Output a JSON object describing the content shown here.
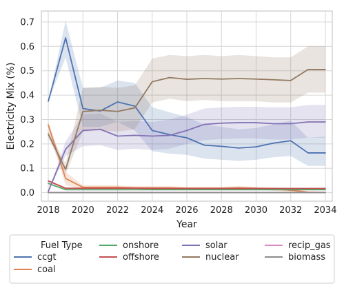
{
  "chart_data": {
    "type": "line",
    "title": "",
    "xlabel": "Year",
    "ylabel": "Electricity Mix (%)",
    "xlim": [
      2017.6,
      2034.4
    ],
    "ylim": [
      -0.035,
      0.745
    ],
    "x_ticks": [
      2018,
      2020,
      2022,
      2024,
      2026,
      2028,
      2030,
      2032,
      2034
    ],
    "y_ticks": [
      0.0,
      0.1,
      0.2,
      0.3,
      0.4,
      0.5,
      0.6,
      0.7
    ],
    "y_tick_labels": [
      "0.0",
      "0.1",
      "0.2",
      "0.3",
      "0.4",
      "0.5",
      "0.6",
      "0.7"
    ],
    "grid": true,
    "legend_title": "Fuel Type",
    "legend_placement": "below",
    "x": [
      2018,
      2019,
      2020,
      2021,
      2022,
      2023,
      2024,
      2025,
      2026,
      2027,
      2028,
      2029,
      2030,
      2031,
      2032,
      2033,
      2034
    ],
    "series": [
      {
        "name": "ccgt",
        "color": "#4c72b0",
        "values": [
          0.375,
          0.635,
          0.345,
          0.335,
          0.372,
          0.355,
          0.255,
          0.238,
          0.225,
          0.195,
          0.19,
          0.183,
          0.188,
          0.203,
          0.213,
          0.163,
          0.163
        ],
        "lower": [
          0.375,
          0.555,
          0.27,
          0.27,
          0.29,
          0.255,
          0.17,
          0.16,
          0.155,
          0.14,
          0.135,
          0.13,
          0.135,
          0.145,
          0.15,
          0.11,
          0.11
        ],
        "upper": [
          0.375,
          0.705,
          0.43,
          0.43,
          0.46,
          0.45,
          0.35,
          0.33,
          0.31,
          0.28,
          0.27,
          0.26,
          0.265,
          0.28,
          0.295,
          0.225,
          0.23
        ]
      },
      {
        "name": "coal",
        "color": "#dd8452",
        "values": [
          0.278,
          0.058,
          0.022,
          0.022,
          0.022,
          0.02,
          0.02,
          0.02,
          0.018,
          0.018,
          0.018,
          0.02,
          0.018,
          0.015,
          0.01,
          0.002,
          0.001
        ],
        "lower": [
          0.262,
          0.03,
          0.016,
          0.016,
          0.016,
          0.015,
          0.015,
          0.015,
          0.013,
          0.013,
          0.013,
          0.014,
          0.013,
          0.008,
          0.003,
          0.0,
          0.0
        ],
        "upper": [
          0.29,
          0.085,
          0.03,
          0.03,
          0.03,
          0.026,
          0.026,
          0.026,
          0.024,
          0.024,
          0.024,
          0.027,
          0.024,
          0.022,
          0.018,
          0.006,
          0.004
        ]
      },
      {
        "name": "onshore",
        "color": "#55a868",
        "values": [
          0.038,
          0.012,
          0.012,
          0.012,
          0.012,
          0.012,
          0.012,
          0.012,
          0.012,
          0.012,
          0.012,
          0.012,
          0.012,
          0.012,
          0.012,
          0.012,
          0.012
        ],
        "lower": [
          0.034,
          0.01,
          0.01,
          0.01,
          0.01,
          0.01,
          0.01,
          0.01,
          0.01,
          0.01,
          0.01,
          0.01,
          0.01,
          0.01,
          0.01,
          0.01,
          0.01
        ],
        "upper": [
          0.042,
          0.015,
          0.015,
          0.015,
          0.015,
          0.015,
          0.015,
          0.015,
          0.015,
          0.015,
          0.015,
          0.015,
          0.015,
          0.015,
          0.015,
          0.015,
          0.015
        ]
      },
      {
        "name": "offshore",
        "color": "#c44e52",
        "values": [
          0.048,
          0.018,
          0.018,
          0.018,
          0.018,
          0.018,
          0.017,
          0.017,
          0.017,
          0.017,
          0.017,
          0.017,
          0.017,
          0.017,
          0.017,
          0.017,
          0.017
        ],
        "lower": [
          0.044,
          0.015,
          0.015,
          0.015,
          0.015,
          0.015,
          0.014,
          0.014,
          0.014,
          0.014,
          0.014,
          0.014,
          0.014,
          0.014,
          0.014,
          0.014,
          0.014
        ],
        "upper": [
          0.052,
          0.022,
          0.022,
          0.022,
          0.022,
          0.022,
          0.021,
          0.021,
          0.021,
          0.021,
          0.021,
          0.021,
          0.021,
          0.021,
          0.021,
          0.021,
          0.021
        ]
      },
      {
        "name": "solar",
        "color": "#8172b3",
        "values": [
          0.005,
          0.178,
          0.255,
          0.26,
          0.232,
          0.235,
          0.232,
          0.235,
          0.255,
          0.28,
          0.285,
          0.287,
          0.287,
          0.283,
          0.283,
          0.29,
          0.29
        ],
        "lower": [
          0.005,
          0.15,
          0.19,
          0.195,
          0.175,
          0.18,
          0.175,
          0.18,
          0.2,
          0.215,
          0.22,
          0.222,
          0.222,
          0.218,
          0.218,
          0.225,
          0.225
        ],
        "upper": [
          0.005,
          0.21,
          0.32,
          0.325,
          0.29,
          0.295,
          0.29,
          0.3,
          0.32,
          0.345,
          0.35,
          0.352,
          0.352,
          0.35,
          0.35,
          0.36,
          0.36
        ]
      },
      {
        "name": "nuclear",
        "color": "#937860",
        "values": [
          0.24,
          0.095,
          0.333,
          0.338,
          0.333,
          0.348,
          0.455,
          0.472,
          0.465,
          0.468,
          0.466,
          0.468,
          0.466,
          0.463,
          0.46,
          0.505,
          0.505
        ],
        "lower": [
          0.225,
          0.075,
          0.25,
          0.255,
          0.25,
          0.26,
          0.37,
          0.385,
          0.375,
          0.38,
          0.375,
          0.375,
          0.375,
          0.37,
          0.37,
          0.41,
          0.41
        ],
        "upper": [
          0.255,
          0.12,
          0.43,
          0.435,
          0.43,
          0.44,
          0.55,
          0.565,
          0.56,
          0.565,
          0.56,
          0.565,
          0.56,
          0.555,
          0.555,
          0.6,
          0.6
        ]
      },
      {
        "name": "recip_gas",
        "color": "#da8bc3",
        "values": [
          0.001,
          0.001,
          0.001,
          0.001,
          0.001,
          0.001,
          0.001,
          0.001,
          0.001,
          0.001,
          0.001,
          0.001,
          0.001,
          0.001,
          0.001,
          0.001,
          0.001
        ],
        "lower": [
          0.0,
          0.0,
          0.0,
          0.0,
          0.0,
          0.0,
          0.0,
          0.0,
          0.0,
          0.0,
          0.0,
          0.0,
          0.0,
          0.0,
          0.0,
          0.0,
          0.0
        ],
        "upper": [
          0.002,
          0.002,
          0.002,
          0.002,
          0.002,
          0.002,
          0.002,
          0.002,
          0.002,
          0.002,
          0.002,
          0.002,
          0.002,
          0.002,
          0.002,
          0.002,
          0.002
        ]
      },
      {
        "name": "biomass",
        "color": "#8c8c8c",
        "values": [
          0.0,
          0.0,
          0.0,
          0.0,
          0.0,
          0.0,
          0.0,
          0.0,
          0.0,
          0.0,
          0.0,
          0.0,
          0.0,
          0.0,
          0.0,
          0.0,
          0.0
        ],
        "lower": [
          0.0,
          0.0,
          0.0,
          0.0,
          0.0,
          0.0,
          0.0,
          0.0,
          0.0,
          0.0,
          0.0,
          0.0,
          0.0,
          0.0,
          0.0,
          0.0,
          0.0
        ],
        "upper": [
          0.0,
          0.0,
          0.0,
          0.0,
          0.0,
          0.0,
          0.0,
          0.0,
          0.0,
          0.0,
          0.0,
          0.0,
          0.0,
          0.0,
          0.0,
          0.0,
          0.0
        ]
      }
    ]
  }
}
